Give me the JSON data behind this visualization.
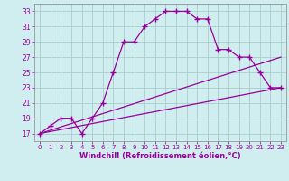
{
  "xlabel": "Windchill (Refroidissement éolien,°C)",
  "background_color": "#d0eef0",
  "line_color": "#990099",
  "grid_color": "#aacccc",
  "series1_x": [
    0,
    1,
    2,
    3,
    4,
    5,
    6,
    7,
    8,
    9,
    10,
    11,
    12,
    13,
    14,
    15,
    16,
    17,
    18,
    19,
    20,
    21,
    22,
    23
  ],
  "series1_y": [
    17,
    18,
    19,
    19,
    17,
    19,
    21,
    25,
    29,
    29,
    31,
    32,
    33,
    33,
    33,
    32,
    32,
    28,
    28,
    27,
    27,
    25,
    23,
    23
  ],
  "series2_x": [
    0,
    23
  ],
  "series2_y": [
    17,
    23
  ],
  "series3_x": [
    0,
    23
  ],
  "series3_y": [
    17,
    27
  ],
  "ylim": [
    16,
    34
  ],
  "xlim": [
    -0.5,
    23.5
  ],
  "yticks": [
    17,
    19,
    21,
    23,
    25,
    27,
    29,
    31,
    33
  ],
  "xticks": [
    0,
    1,
    2,
    3,
    4,
    5,
    6,
    7,
    8,
    9,
    10,
    11,
    12,
    13,
    14,
    15,
    16,
    17,
    18,
    19,
    20,
    21,
    22,
    23
  ],
  "xlabel_fontsize": 6.0,
  "tick_fontsize": 5.5,
  "xtick_fontsize": 5.0
}
